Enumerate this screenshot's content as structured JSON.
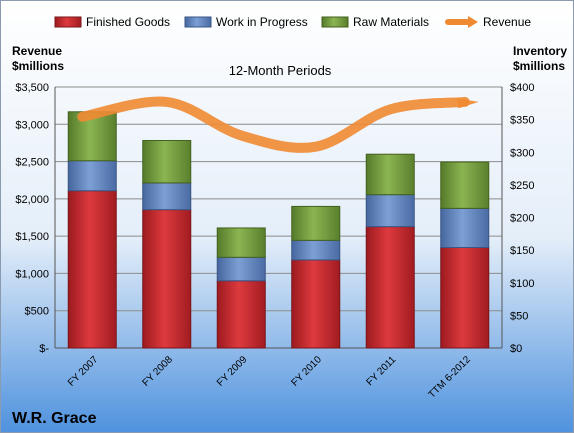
{
  "chart_data": {
    "type": "bar",
    "title": "12-Month Periods",
    "company": "W.R. Grace",
    "categories": [
      "FY 2007",
      "FY 2008",
      "FY 2009",
      "FY 2010",
      "FY 2011",
      "TTM 6-2012"
    ],
    "series": [
      {
        "name": "Finished Goods",
        "color": "#c8242a",
        "values": [
          241,
          212,
          103,
          135,
          186,
          154
        ]
      },
      {
        "name": "Work in Progress",
        "color": "#5a82c3",
        "values": [
          46,
          41,
          36,
          30,
          49,
          60
        ]
      },
      {
        "name": "Raw Materials",
        "color": "#6f9a3a",
        "values": [
          75,
          65,
          45,
          52,
          62,
          71
        ]
      }
    ],
    "line_series": {
      "name": "Revenue",
      "color": "#f08a32",
      "values": [
        3100,
        3300,
        2850,
        2700,
        3200,
        3300
      ]
    },
    "left_axis": {
      "label_line1": "Revenue",
      "label_line2": "$millions",
      "ylim": [
        0,
        3500
      ],
      "ticks": [
        "$-",
        "$500",
        "$1,000",
        "$1,500",
        "$2,000",
        "$2,500",
        "$3,000",
        "$3,500"
      ]
    },
    "right_axis": {
      "label_line1": "Inventory",
      "label_line2": "$millions",
      "ylim": [
        0,
        400
      ],
      "ticks": [
        "$0",
        "$50",
        "$100",
        "$150",
        "$200",
        "$250",
        "$300",
        "$350",
        "$400"
      ]
    },
    "legend_position": "top",
    "grid": true,
    "background_colors": [
      "#ffffff",
      "#5a9be0"
    ]
  }
}
